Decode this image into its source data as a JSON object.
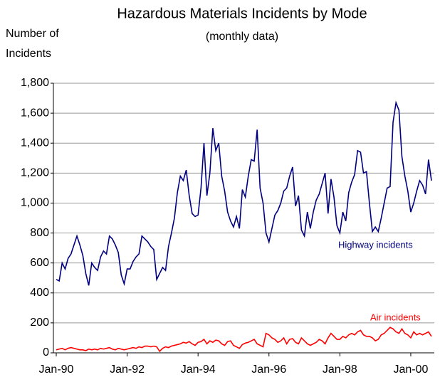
{
  "chart_data": {
    "type": "line",
    "title": "Hazardous Materials Incidents by Mode",
    "subtitle": "(monthly data)",
    "ylabel": [
      "Number of",
      "Incidents"
    ],
    "categories": [
      "Jan-90",
      null,
      null,
      null,
      null,
      null,
      null,
      null,
      null,
      null,
      null,
      null,
      null,
      null,
      null,
      null,
      null,
      null,
      null,
      null,
      null,
      null,
      null,
      null,
      "Jan-92",
      null,
      null,
      null,
      null,
      null,
      null,
      null,
      null,
      null,
      null,
      null,
      null,
      null,
      null,
      null,
      null,
      null,
      null,
      null,
      null,
      null,
      null,
      null,
      "Jan-94",
      null,
      null,
      null,
      null,
      null,
      null,
      null,
      null,
      null,
      null,
      null,
      null,
      null,
      null,
      null,
      null,
      null,
      null,
      null,
      null,
      null,
      null,
      null,
      "Jan-96",
      null,
      null,
      null,
      null,
      null,
      null,
      null,
      null,
      null,
      null,
      null,
      null,
      null,
      null,
      null,
      null,
      null,
      null,
      null,
      null,
      null,
      null,
      null,
      "Jan-98",
      null,
      null,
      null,
      null,
      null,
      null,
      null,
      null,
      null,
      null,
      null,
      null,
      null,
      null,
      null,
      null,
      null,
      null,
      null,
      null,
      null,
      null,
      null,
      "Jan-00",
      null,
      null,
      null,
      null,
      null,
      null,
      null
    ],
    "series": [
      {
        "name": "Highway incidents",
        "color": "#000080",
        "values": [
          490,
          480,
          600,
          560,
          630,
          660,
          720,
          780,
          720,
          650,
          530,
          450,
          600,
          570,
          550,
          640,
          680,
          660,
          780,
          760,
          720,
          670,
          520,
          460,
          560,
          560,
          610,
          640,
          660,
          780,
          760,
          740,
          710,
          690,
          490,
          530,
          570,
          550,
          710,
          800,
          900,
          1070,
          1180,
          1150,
          1220,
          1050,
          930,
          910,
          920,
          1100,
          1400,
          1050,
          1200,
          1500,
          1350,
          1400,
          1180,
          1080,
          940,
          880,
          840,
          910,
          830,
          1090,
          1040,
          1180,
          1290,
          1280,
          1490,
          1100,
          1000,
          800,
          740,
          830,
          920,
          950,
          1000,
          1080,
          1100,
          1180,
          1240,
          980,
          1050,
          820,
          780,
          940,
          830,
          940,
          1020,
          1060,
          1130,
          1200,
          930,
          1160,
          1040,
          850,
          800,
          940,
          880,
          1070,
          1140,
          1190,
          1350,
          1340,
          1200,
          1210,
          1000,
          810,
          840,
          810,
          900,
          1000,
          1100,
          1110,
          1540,
          1670,
          1620,
          1310,
          1180,
          1080,
          940,
          1000,
          1080,
          1150,
          1120,
          1060,
          1290,
          1150
        ]
      },
      {
        "name": "Air incidents",
        "color": "#ff0000",
        "values": [
          20,
          25,
          30,
          20,
          30,
          35,
          30,
          25,
          20,
          20,
          15,
          25,
          20,
          25,
          20,
          30,
          25,
          30,
          35,
          25,
          20,
          30,
          25,
          20,
          25,
          30,
          35,
          30,
          40,
          35,
          45,
          45,
          40,
          45,
          40,
          10,
          30,
          40,
          35,
          45,
          50,
          55,
          60,
          70,
          65,
          75,
          60,
          50,
          70,
          75,
          90,
          60,
          80,
          70,
          85,
          80,
          60,
          50,
          75,
          80,
          50,
          40,
          30,
          55,
          65,
          70,
          80,
          90,
          60,
          50,
          40,
          130,
          120,
          100,
          90,
          70,
          80,
          100,
          60,
          90,
          95,
          70,
          60,
          100,
          80,
          60,
          50,
          60,
          70,
          90,
          80,
          60,
          100,
          130,
          110,
          90,
          90,
          110,
          100,
          120,
          130,
          120,
          140,
          150,
          120,
          110,
          110,
          100,
          80,
          90,
          120,
          130,
          150,
          170,
          160,
          140,
          130,
          160,
          130,
          120,
          100,
          140,
          120,
          130,
          120,
          130,
          140,
          110
        ]
      }
    ],
    "ylim": [
      0,
      1800
    ],
    "yticks": [
      0,
      200,
      400,
      600,
      800,
      {
        "value": 1000,
        "label": "1,000"
      },
      {
        "value": 1200,
        "label": "1,200"
      },
      {
        "value": 1400,
        "label": "1,400"
      },
      {
        "value": 1600,
        "label": "1,600"
      },
      {
        "value": 1800,
        "label": "1,800"
      }
    ],
    "grid": true
  }
}
